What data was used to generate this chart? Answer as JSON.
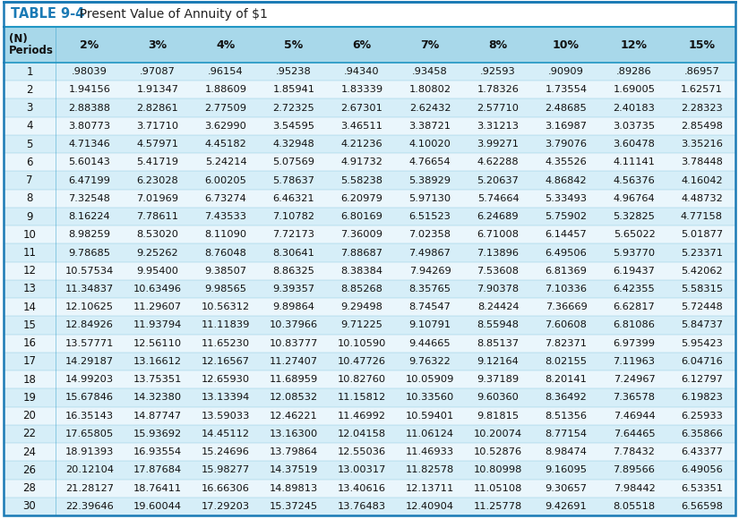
{
  "title_prefix": "TABLE 9-4",
  "title_suffix": "  Present Value of Annuity of $1",
  "col_headers": [
    "(N)\nPeriods",
    "2%",
    "3%",
    "4%",
    "5%",
    "6%",
    "7%",
    "8%",
    "10%",
    "12%",
    "15%"
  ],
  "periods": [
    1,
    2,
    3,
    4,
    5,
    6,
    7,
    8,
    9,
    10,
    11,
    12,
    13,
    14,
    15,
    16,
    17,
    18,
    19,
    20,
    22,
    24,
    26,
    28,
    30
  ],
  "data": [
    [
      ".98039",
      ".97087",
      ".96154",
      ".95238",
      ".94340",
      ".93458",
      ".92593",
      ".90909",
      ".89286",
      ".86957"
    ],
    [
      "1.94156",
      "1.91347",
      "1.88609",
      "1.85941",
      "1.83339",
      "1.80802",
      "1.78326",
      "1.73554",
      "1.69005",
      "1.62571"
    ],
    [
      "2.88388",
      "2.82861",
      "2.77509",
      "2.72325",
      "2.67301",
      "2.62432",
      "2.57710",
      "2.48685",
      "2.40183",
      "2.28323"
    ],
    [
      "3.80773",
      "3.71710",
      "3.62990",
      "3.54595",
      "3.46511",
      "3.38721",
      "3.31213",
      "3.16987",
      "3.03735",
      "2.85498"
    ],
    [
      "4.71346",
      "4.57971",
      "4.45182",
      "4.32948",
      "4.21236",
      "4.10020",
      "3.99271",
      "3.79076",
      "3.60478",
      "3.35216"
    ],
    [
      "5.60143",
      "5.41719",
      "5.24214",
      "5.07569",
      "4.91732",
      "4.76654",
      "4.62288",
      "4.35526",
      "4.11141",
      "3.78448"
    ],
    [
      "6.47199",
      "6.23028",
      "6.00205",
      "5.78637",
      "5.58238",
      "5.38929",
      "5.20637",
      "4.86842",
      "4.56376",
      "4.16042"
    ],
    [
      "7.32548",
      "7.01969",
      "6.73274",
      "6.46321",
      "6.20979",
      "5.97130",
      "5.74664",
      "5.33493",
      "4.96764",
      "4.48732"
    ],
    [
      "8.16224",
      "7.78611",
      "7.43533",
      "7.10782",
      "6.80169",
      "6.51523",
      "6.24689",
      "5.75902",
      "5.32825",
      "4.77158"
    ],
    [
      "8.98259",
      "8.53020",
      "8.11090",
      "7.72173",
      "7.36009",
      "7.02358",
      "6.71008",
      "6.14457",
      "5.65022",
      "5.01877"
    ],
    [
      "9.78685",
      "9.25262",
      "8.76048",
      "8.30641",
      "7.88687",
      "7.49867",
      "7.13896",
      "6.49506",
      "5.93770",
      "5.23371"
    ],
    [
      "10.57534",
      "9.95400",
      "9.38507",
      "8.86325",
      "8.38384",
      "7.94269",
      "7.53608",
      "6.81369",
      "6.19437",
      "5.42062"
    ],
    [
      "11.34837",
      "10.63496",
      "9.98565",
      "9.39357",
      "8.85268",
      "8.35765",
      "7.90378",
      "7.10336",
      "6.42355",
      "5.58315"
    ],
    [
      "12.10625",
      "11.29607",
      "10.56312",
      "9.89864",
      "9.29498",
      "8.74547",
      "8.24424",
      "7.36669",
      "6.62817",
      "5.72448"
    ],
    [
      "12.84926",
      "11.93794",
      "11.11839",
      "10.37966",
      "9.71225",
      "9.10791",
      "8.55948",
      "7.60608",
      "6.81086",
      "5.84737"
    ],
    [
      "13.57771",
      "12.56110",
      "11.65230",
      "10.83777",
      "10.10590",
      "9.44665",
      "8.85137",
      "7.82371",
      "6.97399",
      "5.95423"
    ],
    [
      "14.29187",
      "13.16612",
      "12.16567",
      "11.27407",
      "10.47726",
      "9.76322",
      "9.12164",
      "8.02155",
      "7.11963",
      "6.04716"
    ],
    [
      "14.99203",
      "13.75351",
      "12.65930",
      "11.68959",
      "10.82760",
      "10.05909",
      "9.37189",
      "8.20141",
      "7.24967",
      "6.12797"
    ],
    [
      "15.67846",
      "14.32380",
      "13.13394",
      "12.08532",
      "11.15812",
      "10.33560",
      "9.60360",
      "8.36492",
      "7.36578",
      "6.19823"
    ],
    [
      "16.35143",
      "14.87747",
      "13.59033",
      "12.46221",
      "11.46992",
      "10.59401",
      "9.81815",
      "8.51356",
      "7.46944",
      "6.25933"
    ],
    [
      "17.65805",
      "15.93692",
      "14.45112",
      "13.16300",
      "12.04158",
      "11.06124",
      "10.20074",
      "8.77154",
      "7.64465",
      "6.35866"
    ],
    [
      "18.91393",
      "16.93554",
      "15.24696",
      "13.79864",
      "12.55036",
      "11.46933",
      "10.52876",
      "8.98474",
      "7.78432",
      "6.43377"
    ],
    [
      "20.12104",
      "17.87684",
      "15.98277",
      "14.37519",
      "13.00317",
      "11.82578",
      "10.80998",
      "9.16095",
      "7.89566",
      "6.49056"
    ],
    [
      "21.28127",
      "18.76411",
      "16.66306",
      "14.89813",
      "13.40616",
      "12.13711",
      "11.05108",
      "9.30657",
      "7.98442",
      "6.53351"
    ],
    [
      "22.39646",
      "19.60044",
      "17.29203",
      "15.37245",
      "13.76483",
      "12.40904",
      "11.25778",
      "9.42691",
      "8.05518",
      "6.56598"
    ]
  ],
  "title_color": "#1a7ab5",
  "header_bg": "#a8d8ea",
  "row_bg_light": "#d6eef8",
  "row_bg_white": "#eaf6fc",
  "border_color": "#2196c4",
  "text_color": "#111111",
  "title_bar_bg": "#ffffff",
  "outer_border_color": "#1a7ab5"
}
